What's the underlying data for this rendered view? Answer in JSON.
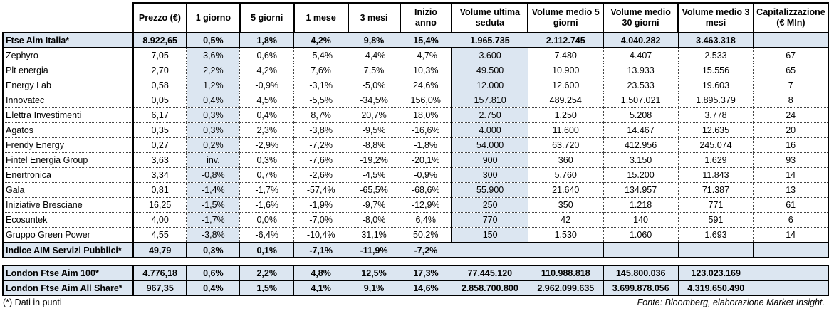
{
  "headers": [
    "",
    "Prezzo (€)",
    "1 giorno",
    "5 giorni",
    "1 mese",
    "3 mesi",
    "Inizio anno",
    "Volume ultima seduta",
    "Volume medio 5 giorni",
    "Volume medio 30 giorni",
    "Volume medio 3 mesi",
    "Capitalizzazione (€ Mln)"
  ],
  "index_row": [
    "Ftse Aim Italia*",
    "8.922,65",
    "0,5%",
    "1,8%",
    "4,2%",
    "9,8%",
    "15,4%",
    "1.965.735",
    "2.112.745",
    "4.040.282",
    "3.463.318",
    ""
  ],
  "rows": [
    [
      "Zephyro",
      "7,05",
      "3,6%",
      "0,6%",
      "-5,4%",
      "-4,4%",
      "-4,7%",
      "3.600",
      "7.480",
      "4.407",
      "2.533",
      "67"
    ],
    [
      "Plt energia",
      "2,70",
      "2,2%",
      "4,2%",
      "7,6%",
      "7,5%",
      "10,3%",
      "49.500",
      "10.900",
      "13.933",
      "15.556",
      "65"
    ],
    [
      "Energy Lab",
      "0,58",
      "1,2%",
      "-0,9%",
      "-3,1%",
      "-5,0%",
      "24,6%",
      "12.000",
      "12.600",
      "23.533",
      "19.603",
      "7"
    ],
    [
      "Innovatec",
      "0,05",
      "0,4%",
      "4,5%",
      "-5,5%",
      "-34,5%",
      "156,0%",
      "157.810",
      "489.254",
      "1.507.021",
      "1.895.379",
      "8"
    ],
    [
      "Elettra Investimenti",
      "6,17",
      "0,3%",
      "0,4%",
      "8,7%",
      "20,7%",
      "18,0%",
      "2.750",
      "1.250",
      "5.208",
      "3.778",
      "24"
    ],
    [
      "Agatos",
      "0,35",
      "0,3%",
      "2,3%",
      "-3,8%",
      "-9,5%",
      "-16,6%",
      "4.000",
      "11.600",
      "14.467",
      "12.635",
      "20"
    ],
    [
      "Frendy Energy",
      "0,27",
      "0,2%",
      "-2,9%",
      "-7,2%",
      "-8,8%",
      "-1,8%",
      "54.000",
      "63.720",
      "412.956",
      "245.074",
      "16"
    ],
    [
      "Fintel Energia Group",
      "3,63",
      "inv.",
      "0,3%",
      "-7,6%",
      "-19,2%",
      "-20,1%",
      "900",
      "360",
      "3.150",
      "1.629",
      "93"
    ],
    [
      "Enertronica",
      "3,34",
      "-0,8%",
      "0,7%",
      "-2,6%",
      "-4,5%",
      "-0,9%",
      "300",
      "5.760",
      "15.200",
      "11.843",
      "14"
    ],
    [
      "Gala",
      "0,81",
      "-1,4%",
      "-1,7%",
      "-57,4%",
      "-65,5%",
      "-68,6%",
      "55.900",
      "21.640",
      "134.957",
      "71.387",
      "13"
    ],
    [
      "Iniziative Bresciane",
      "16,25",
      "-1,5%",
      "-1,6%",
      "-1,9%",
      "-9,7%",
      "-12,9%",
      "250",
      "350",
      "1.218",
      "771",
      "61"
    ],
    [
      "Ecosuntek",
      "4,00",
      "-1,7%",
      "0,0%",
      "-7,0%",
      "-8,0%",
      "6,4%",
      "770",
      "42",
      "140",
      "591",
      "6"
    ],
    [
      "Gruppo Green Power",
      "4,55",
      "-3,8%",
      "-6,4%",
      "-10,4%",
      "31,1%",
      "50,2%",
      "150",
      "1.530",
      "1.060",
      "1.693",
      "14"
    ]
  ],
  "sector_row": [
    "Indice AIM Servizi Pubblici*",
    "49,79",
    "0,3%",
    "0,1%",
    "-7,1%",
    "-11,9%",
    "-7,2%",
    "",
    "",
    "",
    "",
    ""
  ],
  "london_rows": [
    [
      "London Ftse Aim 100*",
      "4.776,18",
      "0,6%",
      "2,2%",
      "4,8%",
      "12,5%",
      "17,3%",
      "77.445.120",
      "110.988.818",
      "145.800.036",
      "123.023.169",
      ""
    ],
    [
      "London Ftse Aim All Share*",
      "967,35",
      "0,4%",
      "1,5%",
      "4,1%",
      "9,1%",
      "14,6%",
      "2.858.700.800",
      "2.962.099.635",
      "3.699.878.056",
      "4.319.650.490",
      ""
    ]
  ],
  "footnote": "(*) Dati in punti",
  "source": "Fonte: Bloomberg, elaborazione Market Insight.",
  "colors": {
    "highlight": "#dce6f1"
  }
}
